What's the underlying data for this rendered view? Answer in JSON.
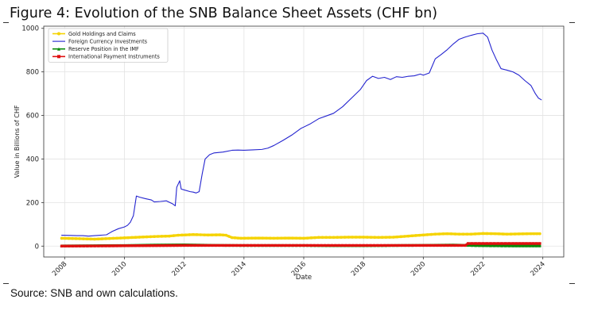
{
  "figure": {
    "title": "Figure 4: Evolution of the SNB Balance Sheet Assets (CHF bn)",
    "source": "Source: SNB and own calculations."
  },
  "chart_data": {
    "type": "line",
    "title": "",
    "xlabel": "Date",
    "ylabel": "Value in Billions of CHF",
    "xlim": [
      2007.3,
      2024.7
    ],
    "ylim": [
      -50,
      1010
    ],
    "xticks": [
      "2008",
      "2010",
      "2012",
      "2014",
      "2016",
      "2018",
      "2020",
      "2022",
      "2024"
    ],
    "yticks": [
      "0",
      "200",
      "400",
      "600",
      "800",
      "1000"
    ],
    "grid": true,
    "legend_position": "top-left",
    "series": [
      {
        "name": "Gold Holdings and Claims",
        "color": "#f5d300",
        "marker": "circle",
        "points": [
          [
            2007.9,
            36
          ],
          [
            2008.5,
            34
          ],
          [
            2009.0,
            32
          ],
          [
            2009.5,
            35
          ],
          [
            2010.0,
            38
          ],
          [
            2010.5,
            41
          ],
          [
            2011.0,
            44
          ],
          [
            2011.5,
            46
          ],
          [
            2011.8,
            50
          ],
          [
            2012.3,
            53
          ],
          [
            2012.8,
            51
          ],
          [
            2013.2,
            52
          ],
          [
            2013.4,
            50
          ],
          [
            2013.6,
            39
          ],
          [
            2013.9,
            36
          ],
          [
            2014.5,
            37
          ],
          [
            2015.0,
            36
          ],
          [
            2015.5,
            37
          ],
          [
            2016.0,
            36
          ],
          [
            2016.5,
            40
          ],
          [
            2017.0,
            40
          ],
          [
            2017.5,
            41
          ],
          [
            2018.0,
            41
          ],
          [
            2018.5,
            40
          ],
          [
            2019.0,
            41
          ],
          [
            2019.5,
            46
          ],
          [
            2020.0,
            51
          ],
          [
            2020.4,
            55
          ],
          [
            2020.8,
            57
          ],
          [
            2021.2,
            55
          ],
          [
            2021.6,
            55
          ],
          [
            2022.0,
            58
          ],
          [
            2022.4,
            57
          ],
          [
            2022.8,
            55
          ],
          [
            2023.2,
            56
          ],
          [
            2023.6,
            57
          ],
          [
            2023.9,
            57
          ]
        ]
      },
      {
        "name": "Foreign Currency Investments",
        "color": "#2424cf",
        "marker": "none",
        "points": [
          [
            2007.9,
            50
          ],
          [
            2008.2,
            49
          ],
          [
            2008.4,
            48
          ],
          [
            2008.6,
            48
          ],
          [
            2008.8,
            46
          ],
          [
            2009.0,
            48
          ],
          [
            2009.2,
            50
          ],
          [
            2009.4,
            52
          ],
          [
            2009.5,
            60
          ],
          [
            2009.6,
            68
          ],
          [
            2009.8,
            80
          ],
          [
            2010.0,
            88
          ],
          [
            2010.1,
            95
          ],
          [
            2010.2,
            110
          ],
          [
            2010.3,
            140
          ],
          [
            2010.4,
            230
          ],
          [
            2010.5,
            225
          ],
          [
            2010.7,
            218
          ],
          [
            2010.9,
            212
          ],
          [
            2011.0,
            203
          ],
          [
            2011.2,
            205
          ],
          [
            2011.4,
            208
          ],
          [
            2011.6,
            195
          ],
          [
            2011.7,
            185
          ],
          [
            2011.75,
            270
          ],
          [
            2011.85,
            300
          ],
          [
            2011.9,
            262
          ],
          [
            2012.0,
            258
          ],
          [
            2012.2,
            250
          ],
          [
            2012.3,
            248
          ],
          [
            2012.4,
            244
          ],
          [
            2012.5,
            250
          ],
          [
            2012.6,
            330
          ],
          [
            2012.7,
            400
          ],
          [
            2012.85,
            420
          ],
          [
            2013.0,
            428
          ],
          [
            2013.3,
            432
          ],
          [
            2013.6,
            440
          ],
          [
            2013.8,
            441
          ],
          [
            2014.0,
            440
          ],
          [
            2014.3,
            442
          ],
          [
            2014.6,
            444
          ],
          [
            2014.8,
            450
          ],
          [
            2015.0,
            462
          ],
          [
            2015.3,
            485
          ],
          [
            2015.6,
            510
          ],
          [
            2015.9,
            540
          ],
          [
            2016.2,
            560
          ],
          [
            2016.5,
            585
          ],
          [
            2016.8,
            600
          ],
          [
            2017.0,
            610
          ],
          [
            2017.3,
            640
          ],
          [
            2017.6,
            680
          ],
          [
            2017.9,
            720
          ],
          [
            2018.1,
            760
          ],
          [
            2018.3,
            780
          ],
          [
            2018.5,
            770
          ],
          [
            2018.7,
            775
          ],
          [
            2018.9,
            765
          ],
          [
            2019.1,
            778
          ],
          [
            2019.3,
            775
          ],
          [
            2019.5,
            780
          ],
          [
            2019.7,
            782
          ],
          [
            2019.9,
            790
          ],
          [
            2020.0,
            785
          ],
          [
            2020.2,
            795
          ],
          [
            2020.4,
            860
          ],
          [
            2020.6,
            880
          ],
          [
            2020.8,
            902
          ],
          [
            2021.0,
            928
          ],
          [
            2021.2,
            950
          ],
          [
            2021.4,
            960
          ],
          [
            2021.6,
            968
          ],
          [
            2021.8,
            975
          ],
          [
            2022.0,
            978
          ],
          [
            2022.15,
            960
          ],
          [
            2022.3,
            900
          ],
          [
            2022.45,
            855
          ],
          [
            2022.6,
            815
          ],
          [
            2022.8,
            808
          ],
          [
            2023.0,
            800
          ],
          [
            2023.2,
            785
          ],
          [
            2023.4,
            760
          ],
          [
            2023.6,
            738
          ],
          [
            2023.75,
            700
          ],
          [
            2023.85,
            680
          ],
          [
            2023.95,
            672
          ]
        ]
      },
      {
        "name": "Reserve Position in the IMF",
        "color": "#0a8a0a",
        "marker": "triangle",
        "points": [
          [
            2007.9,
            1
          ],
          [
            2009.0,
            2
          ],
          [
            2010.0,
            3
          ],
          [
            2011.0,
            5
          ],
          [
            2012.0,
            6
          ],
          [
            2013.0,
            4
          ],
          [
            2014.0,
            3
          ],
          [
            2015.0,
            3
          ],
          [
            2016.0,
            3
          ],
          [
            2017.0,
            2
          ],
          [
            2018.0,
            2
          ],
          [
            2019.0,
            3
          ],
          [
            2020.0,
            4
          ],
          [
            2021.0,
            5
          ],
          [
            2022.0,
            2
          ],
          [
            2023.0,
            1
          ],
          [
            2023.9,
            1
          ]
        ]
      },
      {
        "name": "International Payment Instruments",
        "color": "#e01010",
        "marker": "square",
        "points": [
          [
            2007.9,
            0
          ],
          [
            2009.5,
            1
          ],
          [
            2010.5,
            2
          ],
          [
            2012.0,
            3
          ],
          [
            2014.0,
            3
          ],
          [
            2016.0,
            3
          ],
          [
            2018.0,
            3
          ],
          [
            2020.0,
            3
          ],
          [
            2021.4,
            3
          ],
          [
            2021.5,
            12
          ],
          [
            2022.0,
            12
          ],
          [
            2023.0,
            12
          ],
          [
            2023.9,
            12
          ]
        ]
      }
    ]
  }
}
